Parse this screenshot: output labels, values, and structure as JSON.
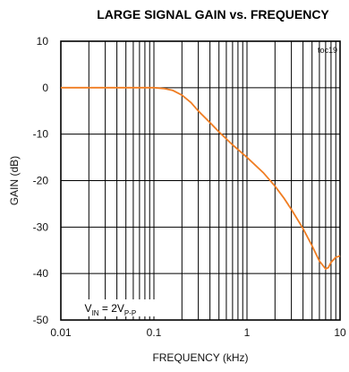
{
  "chart_data": {
    "type": "line",
    "title": "LARGE SIGNAL GAIN vs. FREQUENCY",
    "tag": "toc19",
    "xlabel": "FREQUENCY (kHz)",
    "ylabel": "GAIN (dB)",
    "xscale": "log",
    "xlim": [
      0.01,
      10
    ],
    "ylim": [
      -50,
      10
    ],
    "xticks": [
      "0.01",
      "0.1",
      "1",
      "10"
    ],
    "yticks": [
      "10",
      "0",
      "-10",
      "-20",
      "-30",
      "-40",
      "-50"
    ],
    "grid": true,
    "line_color": "#F07D22",
    "annotation": {
      "prefix": "V",
      "sub1": "IN",
      "middle": " = 2V",
      "sub2": "P-P"
    },
    "series": [
      {
        "x": [
          0.01,
          0.02,
          0.05,
          0.1,
          0.13,
          0.16,
          0.2,
          0.25,
          0.3,
          0.4,
          0.5,
          0.7,
          1.0,
          1.5,
          2.0,
          2.5,
          3.0,
          4.0,
          5.0,
          6.0,
          7.0,
          7.5,
          8.0,
          9.0,
          10.0
        ],
        "y": [
          0,
          0,
          0,
          0,
          -0.2,
          -0.6,
          -1.6,
          -3.2,
          -5.0,
          -7.5,
          -9.5,
          -12.3,
          -15.0,
          -18.3,
          -21.2,
          -23.8,
          -26.2,
          -30.3,
          -34.0,
          -37.3,
          -39.0,
          -38.7,
          -37.6,
          -36.5,
          -36.2
        ]
      }
    ]
  }
}
